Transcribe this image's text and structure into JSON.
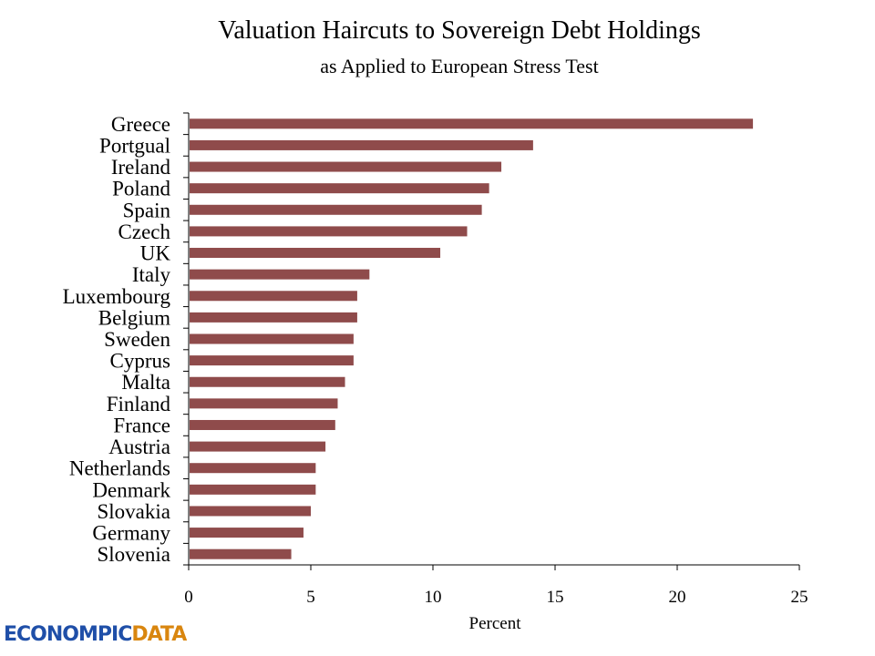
{
  "chart_data": {
    "type": "bar",
    "orientation": "horizontal",
    "title": "Valuation Haircuts to Sovereign Debt Holdings",
    "subtitle": "as Applied to European Stress Test",
    "xlabel": "Percent",
    "ylabel": "",
    "xlim": [
      0,
      25
    ],
    "xticks": [
      0,
      5,
      10,
      15,
      20,
      25
    ],
    "grid": false,
    "bar_color": "#8f4b4b",
    "categories": [
      "Greece",
      "Portgual",
      "Ireland",
      "Poland",
      "Spain",
      "Czech",
      "UK",
      "Italy",
      "Luxembourg",
      "Belgium",
      "Sweden",
      "Cyprus",
      "Malta",
      "Finland",
      "France",
      "Austria",
      "Netherlands",
      "Denmark",
      "Slovakia",
      "Germany",
      "Slovenia"
    ],
    "values": [
      23.1,
      14.1,
      12.8,
      12.3,
      12.0,
      11.4,
      10.3,
      7.4,
      6.9,
      6.9,
      6.75,
      6.75,
      6.4,
      6.1,
      6.0,
      5.6,
      5.2,
      5.2,
      5.0,
      4.7,
      4.2
    ]
  },
  "logo": {
    "part1": "ECONOMPIC",
    "part2": "DATA"
  }
}
